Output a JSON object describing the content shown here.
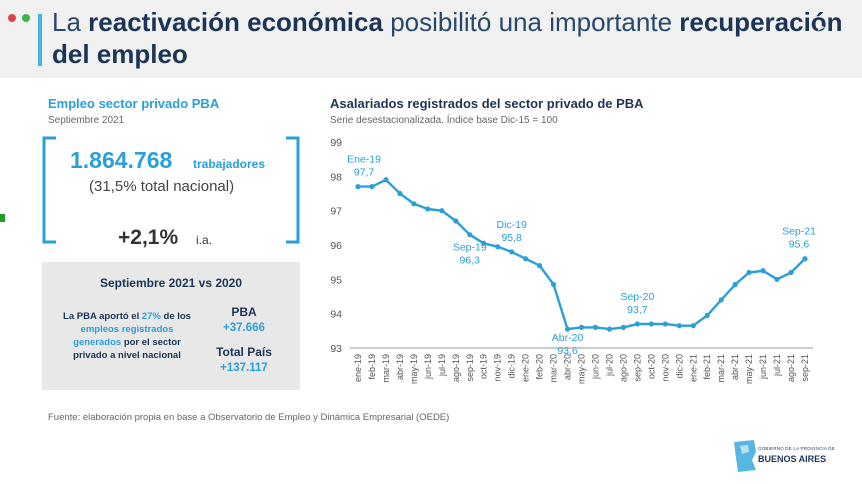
{
  "header": {
    "title_part1": "La ",
    "title_bold1": "reactivación económica",
    "title_part2": " posibilitó una importante ",
    "title_bold2": "recuperación",
    "title_line2": "del empleo"
  },
  "left_panel": {
    "title": "Empleo sector privado PBA",
    "subtitle": "Septiembre 2021",
    "workers": "1.864.768",
    "workers_unit": "trabajadores",
    "national_share": "(31,5% total nacional)",
    "growth": "+2,1%",
    "growth_unit": "i.a."
  },
  "comparison": {
    "title": "Septiembre 2021 vs 2020",
    "text_a": "La PBA aportó el ",
    "text_b": "27%",
    "text_c": " de los ",
    "text_d": "empleos registrados generados",
    "text_e": " por el sector privado a nivel nacional",
    "pba_label": "PBA",
    "pba_value": "+37.666",
    "country_label": "Total País",
    "country_value": "+137.117"
  },
  "chart_title": "Asalariados registrados del sector privado de PBA",
  "chart_subtitle": "Serie desestacionalizada. Índice base Dic-15 = 100",
  "source": "Fuente: elaboración propia en base a Observatorio de Empleo y Dinámica Empresarial (OEDE)",
  "logo": {
    "line1": "GOBIERNO DE LA PROVINCIA DE",
    "line2": "BUENOS AIRES"
  },
  "colors": {
    "accent": "#2a9fd8",
    "navy": "#1c3556",
    "line": "#2a9fd8"
  },
  "chart_data": {
    "type": "line",
    "categories": [
      "ene-19",
      "feb-19",
      "mar-19",
      "abr-19",
      "may-19",
      "jun-19",
      "jul-19",
      "ago-19",
      "sep-19",
      "oct-19",
      "nov-19",
      "dic-19",
      "ene-20",
      "feb-20",
      "mar-20",
      "abr-20",
      "may-20",
      "jun-20",
      "jul-20",
      "ago-20",
      "sep-20",
      "oct-20",
      "nov-20",
      "dic-20",
      "ene-21",
      "feb-21",
      "mar-21",
      "abr-21",
      "may-21",
      "jun-21",
      "jul-21",
      "ago-21",
      "sep-21"
    ],
    "values": [
      97.7,
      97.7,
      97.9,
      97.5,
      97.2,
      97.05,
      97.0,
      96.7,
      96.3,
      96.05,
      95.95,
      95.8,
      95.6,
      95.4,
      94.85,
      93.55,
      93.6,
      93.6,
      93.55,
      93.6,
      93.7,
      93.7,
      93.7,
      93.65,
      93.65,
      93.95,
      94.4,
      94.85,
      95.2,
      95.25,
      95.0,
      95.2,
      95.6
    ],
    "ylim": [
      93,
      99
    ],
    "yticks": [
      93,
      94,
      95,
      96,
      97,
      98,
      99
    ],
    "annotations": [
      {
        "index": 0,
        "label": "Ene-19",
        "value_label": "97,7"
      },
      {
        "index": 8,
        "label": "Sep-19",
        "value_label": "96,3"
      },
      {
        "index": 11,
        "label": "Dic-19",
        "value_label": "95,8"
      },
      {
        "index": 15,
        "label": "Abr-20",
        "value_label": "93,6"
      },
      {
        "index": 20,
        "label": "Sep-20",
        "value_label": "93,7"
      },
      {
        "index": 32,
        "label": "Sep-21",
        "value_label": "95,6"
      }
    ],
    "grid": false,
    "legend": "none"
  }
}
